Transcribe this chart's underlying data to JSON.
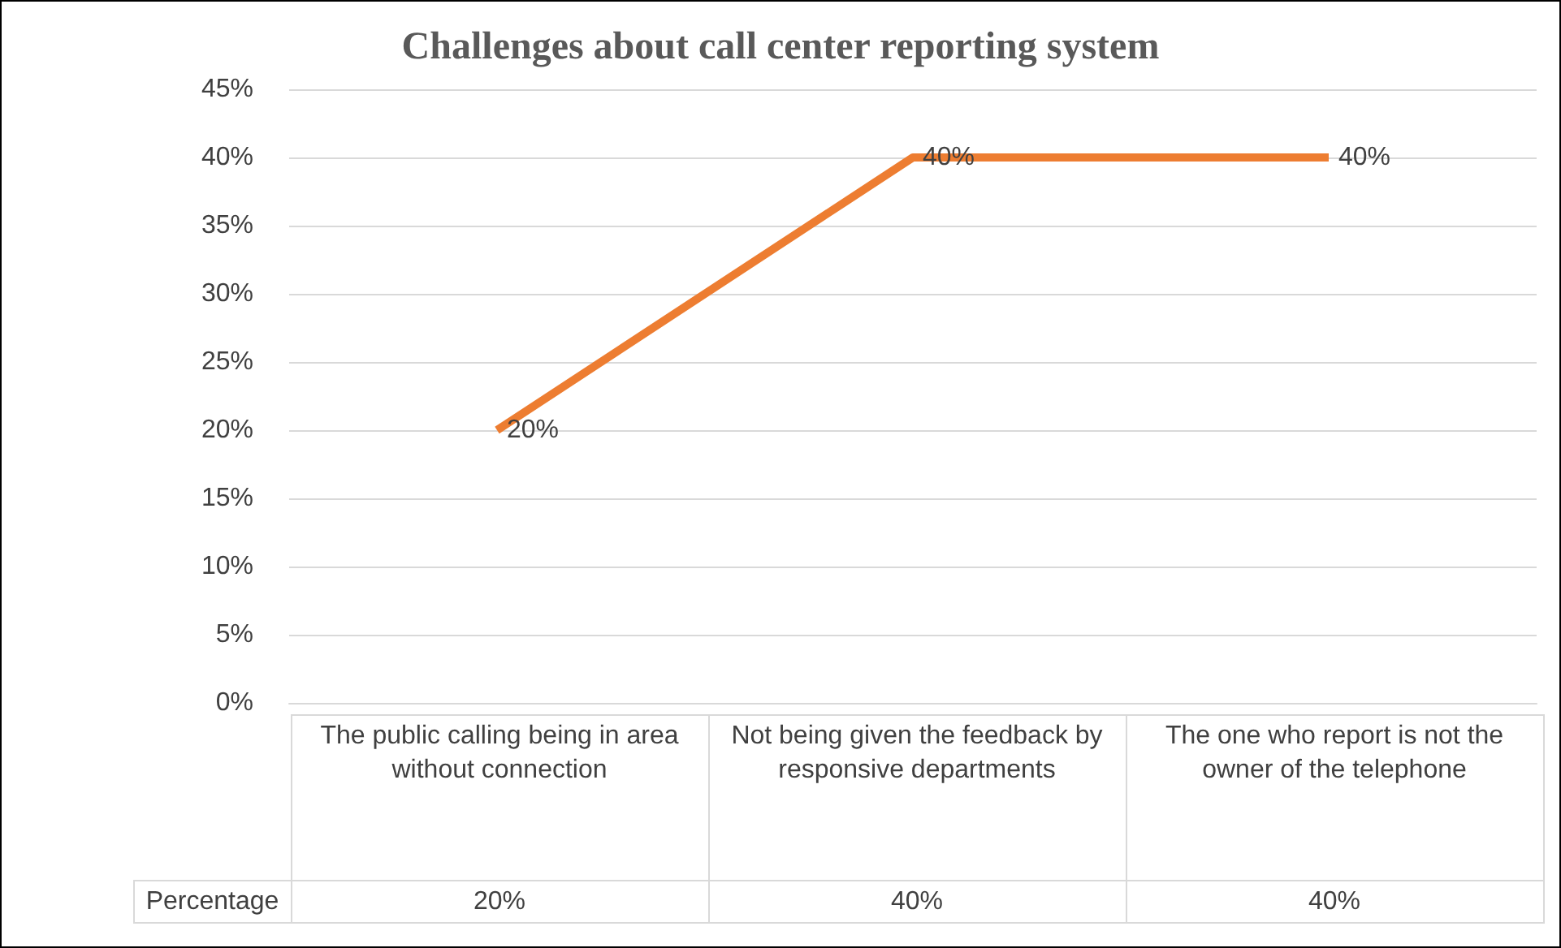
{
  "chart_data": {
    "type": "line",
    "title": "Challenges about call center reporting system",
    "categories": [
      "The public calling being in area without connection",
      "Not being given the feedback by responsive departments",
      "The one who report is not the owner of the telephone"
    ],
    "series": [
      {
        "name": "Percentage",
        "color": "#ed7d31",
        "values": [
          20,
          40,
          40
        ],
        "value_labels": [
          "20%",
          "40%",
          "40%"
        ]
      }
    ],
    "ylim": [
      0,
      45
    ],
    "yticks": [
      {
        "value": 0,
        "label": "0%"
      },
      {
        "value": 5,
        "label": "5%"
      },
      {
        "value": 10,
        "label": "10%"
      },
      {
        "value": 15,
        "label": "15%"
      },
      {
        "value": 20,
        "label": "20%"
      },
      {
        "value": 25,
        "label": "25%"
      },
      {
        "value": 30,
        "label": "30%"
      },
      {
        "value": 35,
        "label": "35%"
      },
      {
        "value": 40,
        "label": "40%"
      },
      {
        "value": 45,
        "label": "45%"
      }
    ],
    "grid": "y",
    "legend": false,
    "marker": "none",
    "line_style": "solid"
  }
}
